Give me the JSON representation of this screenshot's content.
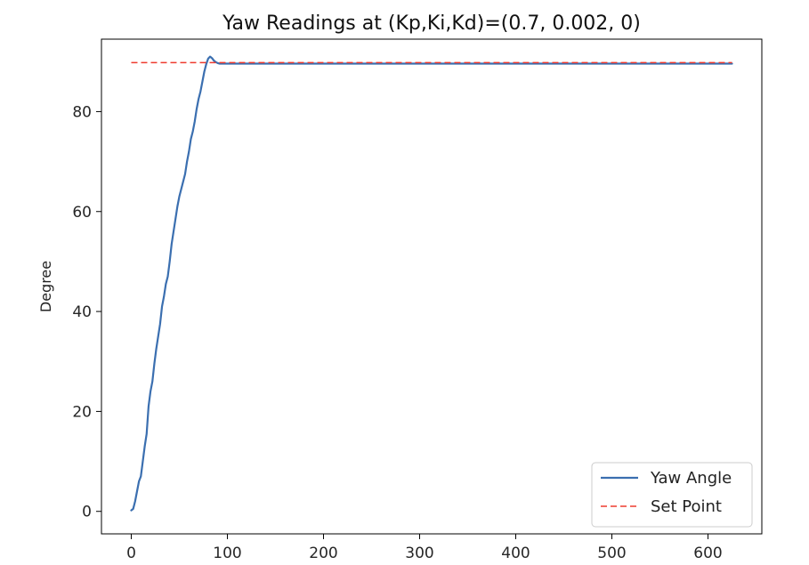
{
  "chart_data": {
    "type": "line",
    "title": "Yaw Readings at (Kp,Ki,Kd)=(0.7, 0.002, 0)",
    "xlabel": "",
    "ylabel": "Degree",
    "xlim": [
      -31,
      656
    ],
    "ylim": [
      -4.5,
      94.5
    ],
    "xticks": [
      0,
      100,
      200,
      300,
      400,
      500,
      600
    ],
    "yticks": [
      0,
      20,
      40,
      60,
      80
    ],
    "grid": false,
    "legend_position": "lower-right",
    "series": [
      {
        "name": "Yaw Angle",
        "color": "#3b6fb0",
        "style": "solid",
        "x": [
          0,
          2,
          4,
          6,
          8,
          10,
          12,
          14,
          16,
          18,
          20,
          22,
          24,
          26,
          28,
          30,
          32,
          34,
          36,
          38,
          40,
          42,
          44,
          46,
          48,
          50,
          52,
          54,
          56,
          58,
          60,
          62,
          64,
          66,
          68,
          70,
          72,
          74,
          76,
          78,
          80,
          82,
          84,
          86,
          88,
          90,
          92,
          94,
          96,
          98,
          100,
          102,
          104,
          106,
          108,
          110,
          112,
          114,
          116,
          118,
          120,
          125,
          130,
          140,
          150,
          200,
          300,
          400,
          500,
          600,
          625
        ],
        "y": [
          0.2,
          0.5,
          2.0,
          4.0,
          6.0,
          7.0,
          10.0,
          13.0,
          15.5,
          21.0,
          24.0,
          26.0,
          29.5,
          32.5,
          35.0,
          37.5,
          41.0,
          43.0,
          45.5,
          47.0,
          50.0,
          53.5,
          56.0,
          58.5,
          61.0,
          63.0,
          64.5,
          66.0,
          67.5,
          70.0,
          72.0,
          74.5,
          76.0,
          78.0,
          80.5,
          82.5,
          84.0,
          86.0,
          88.0,
          89.5,
          90.6,
          91.0,
          90.7,
          90.2,
          89.9,
          89.7,
          89.6,
          89.6,
          89.6,
          89.6,
          89.6,
          89.6,
          89.6,
          89.6,
          89.6,
          89.6,
          89.6,
          89.6,
          89.6,
          89.6,
          89.6,
          89.6,
          89.6,
          89.6,
          89.6,
          89.6,
          89.6,
          89.6,
          89.6,
          89.6,
          89.6
        ]
      },
      {
        "name": "Set Point",
        "color": "#ee3b2f",
        "style": "dashed",
        "x": [
          0,
          625
        ],
        "y": [
          89.8,
          89.8
        ]
      }
    ]
  }
}
